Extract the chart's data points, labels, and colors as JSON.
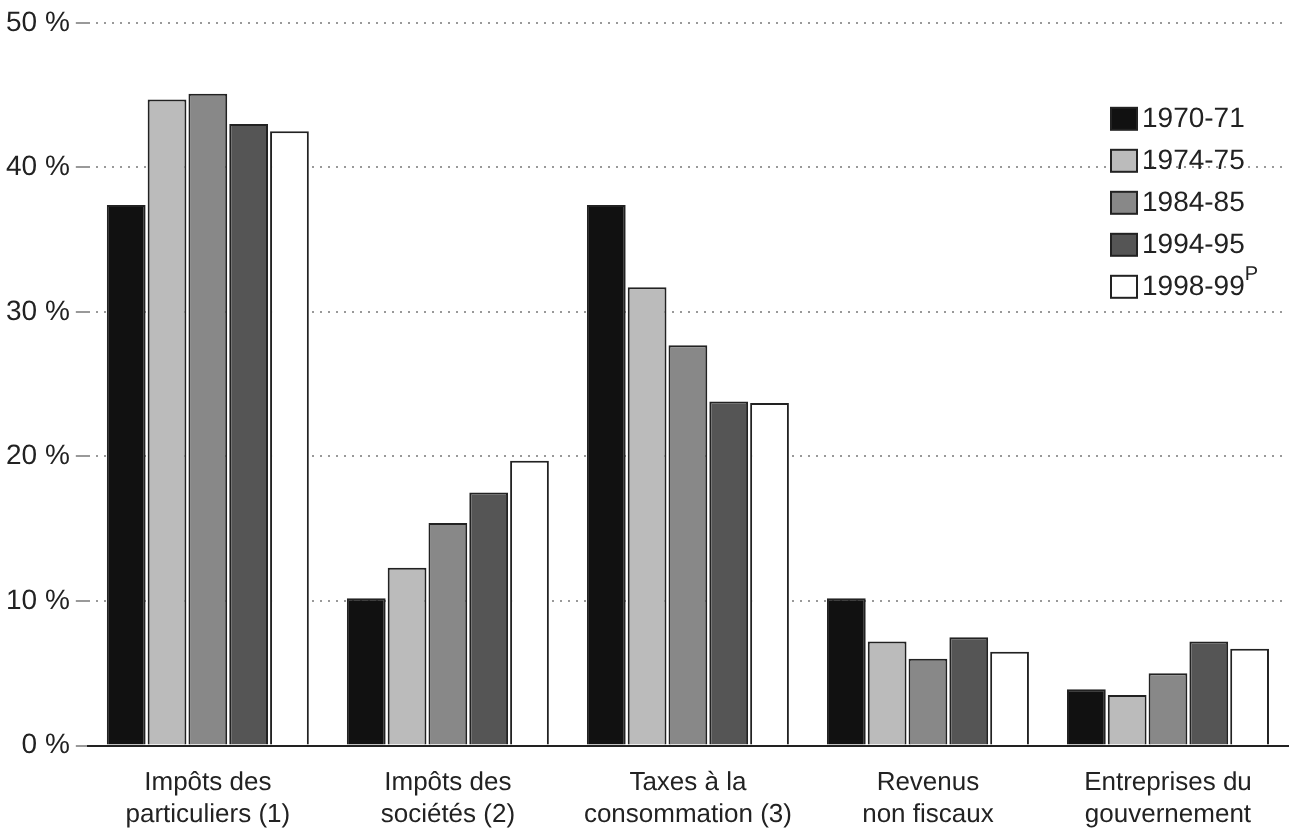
{
  "chart_data": {
    "type": "bar",
    "categories": [
      "Impôts des particuliers (1)",
      "Impôts des sociétés (2)",
      "Taxes à la consommation (3)",
      "Revenus non fiscaux",
      "Entreprises du gouvernement"
    ],
    "series": [
      {
        "name": "1970-71",
        "color": "#111111",
        "values": [
          37.4,
          10.2,
          37.4,
          10.2,
          3.9
        ]
      },
      {
        "name": "1974-75",
        "color": "#bbbbbb",
        "values": [
          44.7,
          12.3,
          31.7,
          7.2,
          3.5
        ]
      },
      {
        "name": "1984-85",
        "color": "#888888",
        "values": [
          45.1,
          15.4,
          27.7,
          6.0,
          5.0
        ]
      },
      {
        "name": "1994-95",
        "color": "#555555",
        "values": [
          43.0,
          17.5,
          23.8,
          7.5,
          7.2
        ]
      },
      {
        "name": "1998-99$^{P}$",
        "color": "#ffffff",
        "values": [
          42.5,
          19.7,
          23.7,
          6.5,
          6.7
        ]
      }
    ],
    "ylim": [
      0,
      50
    ],
    "yticks": [
      {
        "value": 0,
        "label": "0 %"
      },
      {
        "value": 10,
        "label": "10 %"
      },
      {
        "value": 20,
        "label": "20 %"
      },
      {
        "value": 30,
        "label": "30 %"
      },
      {
        "value": 40,
        "label": "40 %"
      },
      {
        "value": 50,
        "label": "50 %"
      }
    ],
    "grid": "y",
    "legend": "top right"
  }
}
